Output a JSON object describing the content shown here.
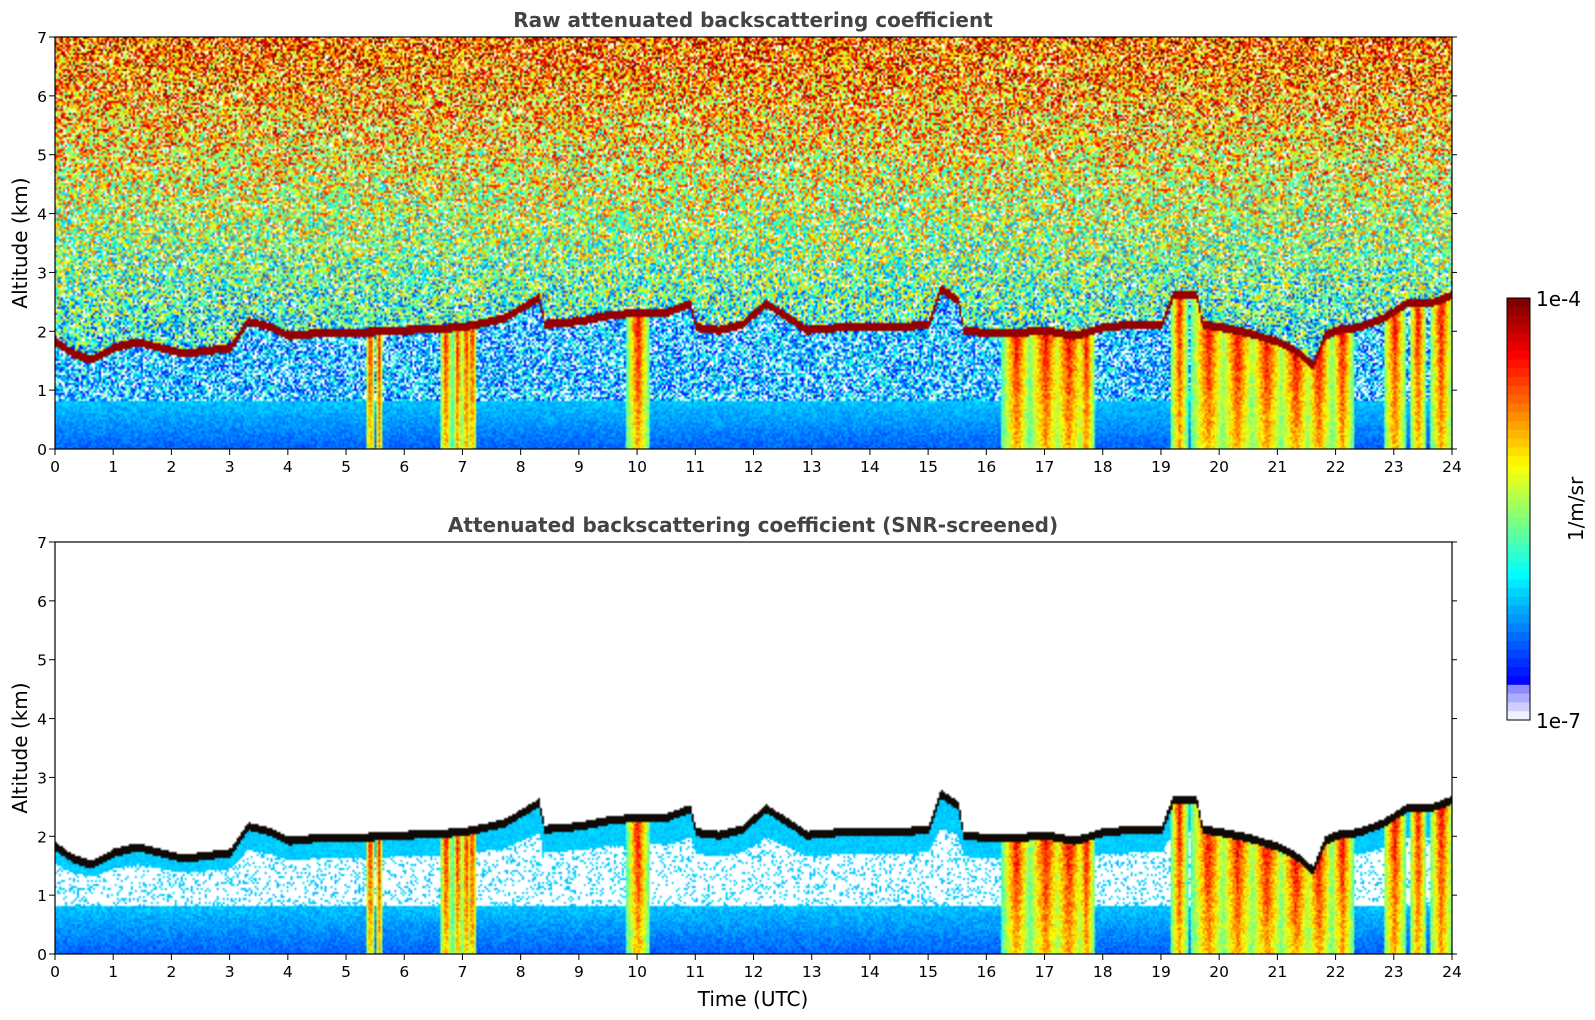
{
  "chart_data": [
    {
      "type": "heatmap",
      "title": "Raw attenuated backscattering coefficient",
      "xlabel": "",
      "ylabel": "Altitude (km)",
      "xlim": [
        0,
        24
      ],
      "ylim": [
        0,
        7
      ],
      "xticks": [
        "0",
        "1",
        "2",
        "3",
        "4",
        "5",
        "6",
        "7",
        "8",
        "9",
        "10",
        "11",
        "12",
        "13",
        "14",
        "15",
        "16",
        "17",
        "18",
        "19",
        "20",
        "21",
        "22",
        "23",
        "24"
      ],
      "yticks": [
        "0",
        "1",
        "2",
        "3",
        "4",
        "5",
        "6",
        "7"
      ],
      "screened": false
    },
    {
      "type": "heatmap",
      "title": "Attenuated backscattering coefficient (SNR-screened)",
      "xlabel": "Time (UTC)",
      "ylabel": "Altitude (km)",
      "xlim": [
        0,
        24
      ],
      "ylim": [
        0,
        7
      ],
      "xticks": [
        "0",
        "1",
        "2",
        "3",
        "4",
        "5",
        "6",
        "7",
        "8",
        "9",
        "10",
        "11",
        "12",
        "13",
        "14",
        "15",
        "16",
        "17",
        "18",
        "19",
        "20",
        "21",
        "22",
        "23",
        "24"
      ],
      "yticks": [
        "0",
        "1",
        "2",
        "3",
        "4",
        "5",
        "6",
        "7"
      ],
      "screened": true
    }
  ],
  "colorbar": {
    "label": "1/m/sr",
    "max_label": "1e-4",
    "min_label": "1e-7",
    "scale": "log",
    "colormap": "jet"
  },
  "layer_top_km": [
    [
      0.0,
      1.8
    ],
    [
      0.3,
      1.6
    ],
    [
      0.6,
      1.5
    ],
    [
      1.0,
      1.7
    ],
    [
      1.4,
      1.8
    ],
    [
      1.8,
      1.7
    ],
    [
      2.2,
      1.6
    ],
    [
      2.6,
      1.65
    ],
    [
      3.0,
      1.7
    ],
    [
      3.3,
      2.15
    ],
    [
      3.7,
      2.05
    ],
    [
      4.0,
      1.9
    ],
    [
      4.5,
      1.95
    ],
    [
      5.0,
      1.95
    ],
    [
      6.0,
      2.0
    ],
    [
      7.0,
      2.05
    ],
    [
      7.7,
      2.2
    ],
    [
      8.3,
      2.55
    ],
    [
      8.4,
      2.1
    ],
    [
      9.0,
      2.15
    ],
    [
      9.5,
      2.25
    ],
    [
      10.0,
      2.3
    ],
    [
      10.5,
      2.3
    ],
    [
      10.9,
      2.45
    ],
    [
      11.0,
      2.05
    ],
    [
      11.4,
      2.0
    ],
    [
      11.8,
      2.1
    ],
    [
      12.2,
      2.45
    ],
    [
      12.6,
      2.2
    ],
    [
      12.9,
      2.0
    ],
    [
      13.5,
      2.05
    ],
    [
      14.5,
      2.05
    ],
    [
      15.0,
      2.1
    ],
    [
      15.2,
      2.7
    ],
    [
      15.5,
      2.5
    ],
    [
      15.6,
      2.0
    ],
    [
      16.0,
      1.95
    ],
    [
      16.5,
      1.95
    ],
    [
      17.0,
      2.0
    ],
    [
      17.5,
      1.9
    ],
    [
      18.0,
      2.05
    ],
    [
      18.6,
      2.1
    ],
    [
      19.0,
      2.1
    ],
    [
      19.2,
      2.6
    ],
    [
      19.6,
      2.6
    ],
    [
      19.7,
      2.1
    ],
    [
      20.0,
      2.05
    ],
    [
      20.5,
      1.95
    ],
    [
      21.0,
      1.8
    ],
    [
      21.3,
      1.65
    ],
    [
      21.6,
      1.4
    ],
    [
      21.8,
      1.9
    ],
    [
      22.0,
      2.0
    ],
    [
      22.4,
      2.05
    ],
    [
      22.8,
      2.2
    ],
    [
      23.2,
      2.45
    ],
    [
      23.6,
      2.45
    ],
    [
      24.0,
      2.6
    ]
  ],
  "precip_shafts_utc": [
    [
      5.4,
      0.08
    ],
    [
      5.55,
      0.06
    ],
    [
      6.7,
      0.1
    ],
    [
      6.9,
      0.08
    ],
    [
      7.05,
      0.08
    ],
    [
      7.15,
      0.08
    ],
    [
      10.0,
      0.2
    ],
    [
      16.5,
      0.25
    ],
    [
      17.0,
      0.3
    ],
    [
      17.4,
      0.3
    ],
    [
      17.7,
      0.15
    ],
    [
      19.3,
      0.15
    ],
    [
      19.8,
      0.3
    ],
    [
      20.3,
      0.3
    ],
    [
      20.8,
      0.3
    ],
    [
      21.3,
      0.3
    ],
    [
      21.7,
      0.25
    ],
    [
      22.1,
      0.2
    ],
    [
      23.0,
      0.2
    ],
    [
      23.4,
      0.15
    ],
    [
      23.8,
      0.2
    ]
  ]
}
